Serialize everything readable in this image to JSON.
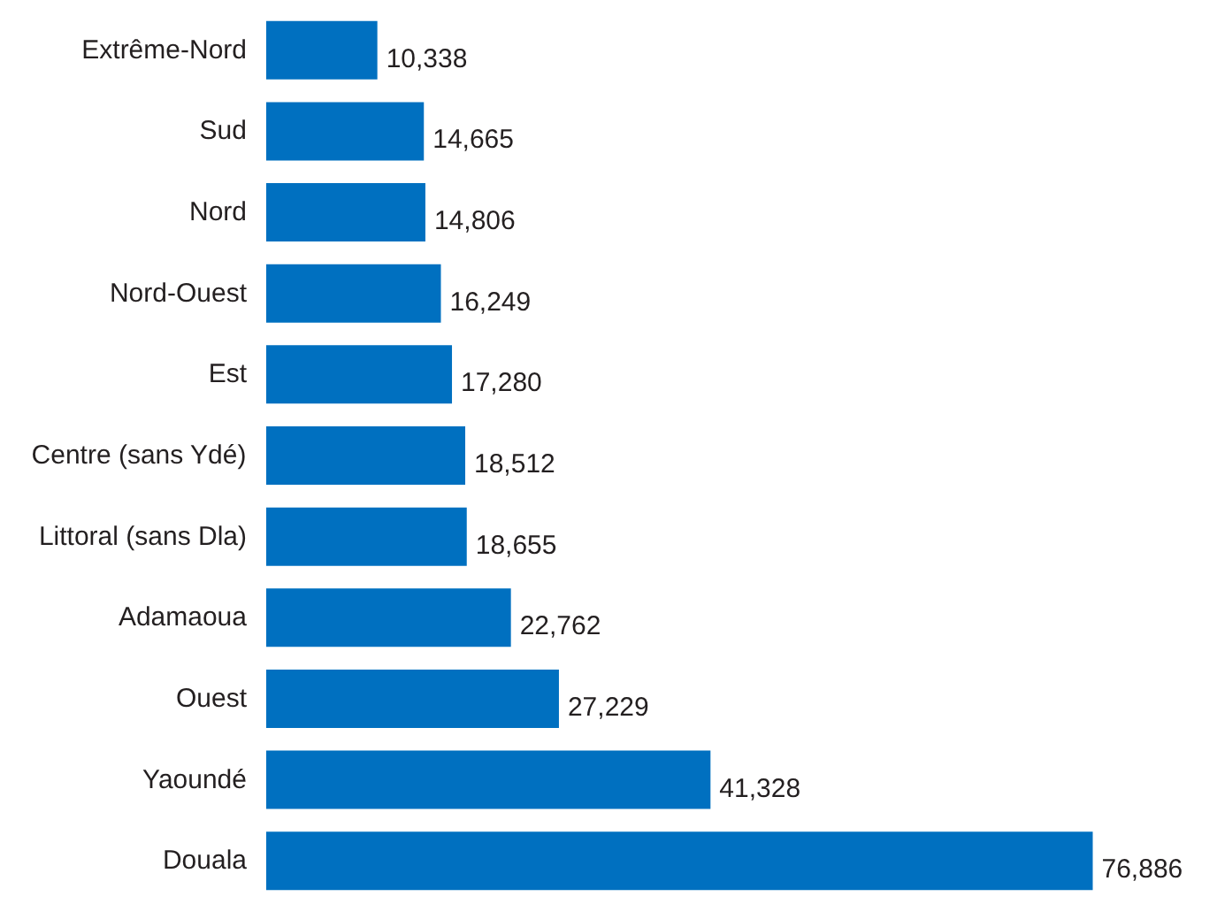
{
  "chart_data": {
    "type": "bar",
    "orientation": "horizontal",
    "categories": [
      "Extrême-Nord",
      "Sud",
      "Nord",
      "Nord-Ouest",
      "Est",
      "Centre (sans Ydé)",
      "Littoral (sans Dla)",
      "Adamaoua",
      "Ouest",
      "Yaoundé",
      "Douala"
    ],
    "values": [
      10338,
      14665,
      14806,
      16249,
      17280,
      18512,
      18655,
      22762,
      27229,
      41328,
      76886
    ],
    "value_labels": [
      "10,338",
      "14,665",
      "14,806",
      "16,249",
      "17,280",
      "18,512",
      "18,655",
      "22,762",
      "27,229",
      "41,328",
      "76,886"
    ],
    "color": "#0070c0",
    "grid": false
  }
}
